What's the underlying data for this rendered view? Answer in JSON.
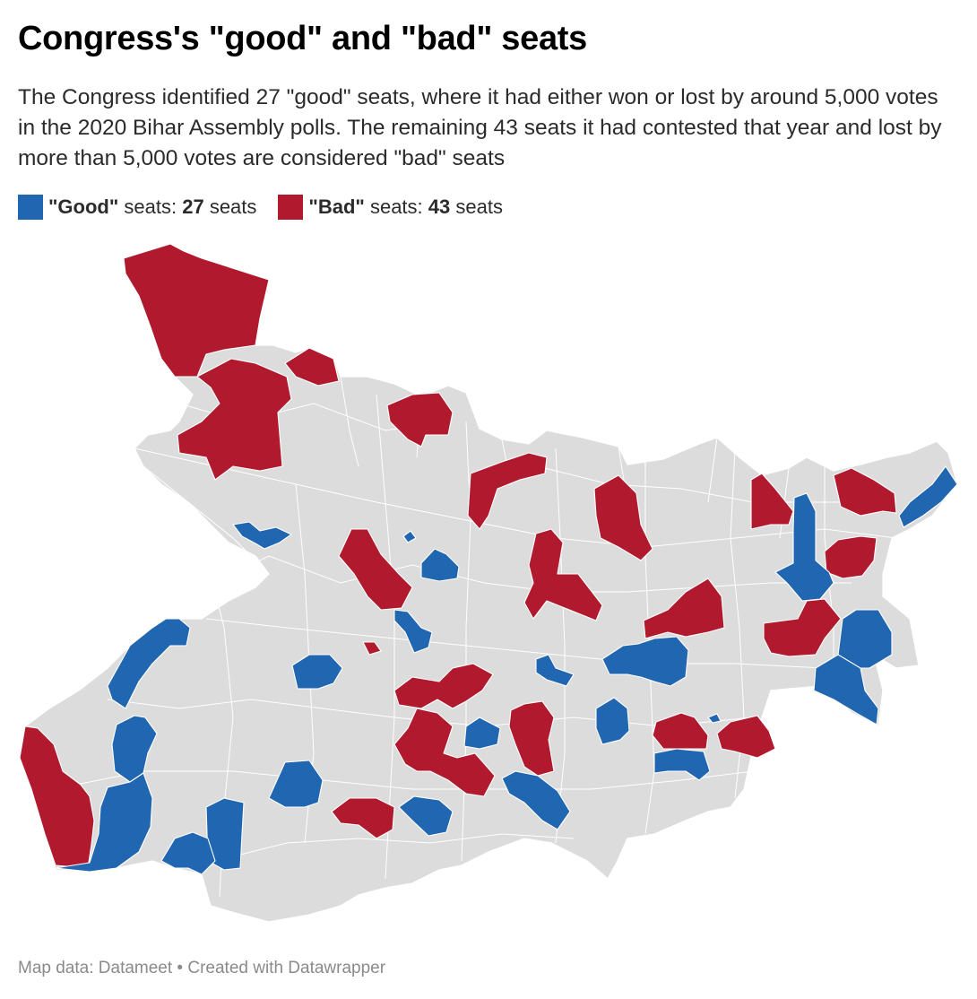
{
  "header": {
    "title": "Congress's \"good\" and \"bad\" seats",
    "subtitle": "The Congress identified 27 \"good\" seats, where it had either won or lost by around 5,000 votes in the 2020 Bihar Assembly polls. The remaining 43 seats it had contested that year and lost by more than 5,000 votes are considered \"bad\" seats"
  },
  "legend": {
    "good": {
      "label": "\"Good\"",
      "text": " seats: ",
      "count": "27",
      "unit": " seats",
      "color": "#2166b0"
    },
    "bad": {
      "label": "\"Bad\"",
      "text": " seats: ",
      "count": "43",
      "unit": " seats",
      "color": "#b11a2e"
    }
  },
  "colors": {
    "base": "#dcdcdc",
    "good": "#2166b0",
    "bad": "#b11a2e"
  },
  "footer": {
    "credit": "Map data: Datameet • Created with Datawrapper"
  }
}
